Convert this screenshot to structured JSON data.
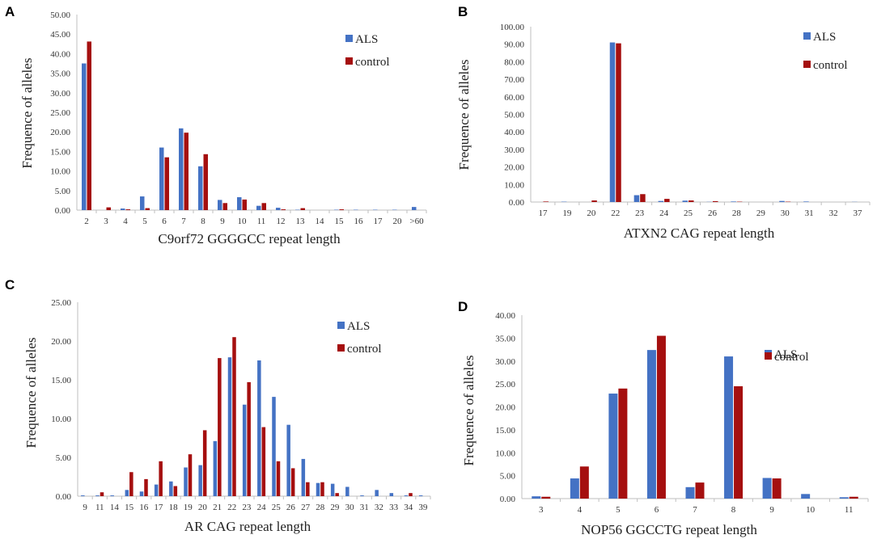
{
  "colors": {
    "ALS": "#4472C4",
    "control": "#A50F0F",
    "axis": "#BFBFBF"
  },
  "chart_data": [
    {
      "panel": "A",
      "type": "bar",
      "xlabel": "C9orf72 GGGGCC repeat length",
      "ylabel": "Frequence of alleles",
      "ylim": [
        0,
        50
      ],
      "yticks": [
        "0.00",
        "5.00",
        "10.00",
        "15.00",
        "20.00",
        "25.00",
        "30.00",
        "35.00",
        "40.00",
        "45.00",
        "50.00"
      ],
      "categories": [
        "2",
        "3",
        "4",
        "5",
        "6",
        "7",
        "8",
        "9",
        "10",
        "11",
        "12",
        "13",
        "14",
        "15",
        "16",
        "17",
        "20",
        ">60"
      ],
      "series": [
        {
          "name": "ALS",
          "values": [
            37.5,
            0.0,
            0.4,
            3.5,
            16.0,
            20.9,
            11.2,
            2.6,
            3.3,
            1.1,
            0.6,
            0.1,
            0.0,
            0.1,
            0.1,
            0.1,
            0.1,
            0.8
          ]
        },
        {
          "name": "control",
          "values": [
            43.1,
            0.7,
            0.2,
            0.5,
            13.5,
            19.8,
            14.3,
            1.8,
            2.7,
            1.8,
            0.2,
            0.5,
            0.0,
            0.2,
            0.0,
            0.0,
            0.0,
            0.0
          ]
        }
      ],
      "legend": [
        "ALS",
        "control"
      ]
    },
    {
      "panel": "B",
      "type": "bar",
      "xlabel": "ATXN2 CAG repeat length",
      "ylabel": "Frequence of alleles",
      "ylim": [
        0,
        100
      ],
      "yticks": [
        "0.00",
        "10.00",
        "20.00",
        "30.00",
        "40.00",
        "50.00",
        "60.00",
        "70.00",
        "80.00",
        "90.00",
        "100.00"
      ],
      "categories": [
        "17",
        "19",
        "20",
        "22",
        "23",
        "24",
        "25",
        "26",
        "28",
        "29",
        "30",
        "31",
        "32",
        "37"
      ],
      "series": [
        {
          "name": "ALS",
          "values": [
            0.0,
            0.2,
            0.0,
            91.0,
            3.9,
            0.6,
            0.8,
            0.1,
            0.3,
            0.0,
            0.6,
            0.3,
            0.0,
            0.1
          ]
        },
        {
          "name": "control",
          "values": [
            0.3,
            0.0,
            0.9,
            90.5,
            4.5,
            1.8,
            0.9,
            0.5,
            0.2,
            0.0,
            0.2,
            0.0,
            0.0,
            0.0
          ]
        }
      ],
      "legend": [
        "ALS",
        "control"
      ]
    },
    {
      "panel": "C",
      "type": "bar",
      "xlabel": "AR CAG repeat length",
      "ylabel": "Frequence of alleles",
      "ylim": [
        0,
        25
      ],
      "yticks": [
        "0.00",
        "5.00",
        "10.00",
        "15.00",
        "20.00",
        "25.00"
      ],
      "categories": [
        "9",
        "11",
        "14",
        "15",
        "16",
        "17",
        "18",
        "19",
        "20",
        "21",
        "22",
        "23",
        "24",
        "25",
        "26",
        "27",
        "28",
        "29",
        "30",
        "31",
        "32",
        "33",
        "34",
        "39"
      ],
      "series": [
        {
          "name": "ALS",
          "values": [
            0.1,
            0.1,
            0.1,
            0.8,
            0.6,
            1.5,
            1.9,
            3.7,
            4.0,
            7.1,
            17.9,
            11.8,
            17.5,
            12.8,
            9.2,
            4.8,
            1.7,
            1.6,
            1.2,
            0.1,
            0.8,
            0.4,
            0.1,
            0.1
          ]
        },
        {
          "name": "control",
          "values": [
            0.0,
            0.5,
            0.0,
            3.1,
            2.2,
            4.5,
            1.3,
            5.4,
            8.5,
            17.8,
            20.5,
            14.7,
            8.9,
            4.5,
            3.6,
            1.8,
            1.8,
            0.4,
            0.0,
            0.0,
            0.0,
            0.0,
            0.4,
            0.0
          ]
        }
      ],
      "legend": [
        "ALS",
        "control"
      ]
    },
    {
      "panel": "D",
      "type": "bar",
      "xlabel": "NOP56 GGCCTG repeat length",
      "ylabel": "Frequence of alleles",
      "ylim": [
        0,
        40
      ],
      "yticks": [
        "0.00",
        "5.00",
        "10.00",
        "15.00",
        "20.00",
        "25.00",
        "30.00",
        "35.00",
        "40.00"
      ],
      "categories": [
        "3",
        "4",
        "5",
        "6",
        "7",
        "8",
        "9",
        "10",
        "11"
      ],
      "series": [
        {
          "name": "ALS",
          "values": [
            0.5,
            4.4,
            22.9,
            32.4,
            2.5,
            31.0,
            4.5,
            1.0,
            0.3
          ]
        },
        {
          "name": "control",
          "values": [
            0.4,
            7.0,
            24.0,
            35.5,
            3.5,
            24.5,
            4.4,
            0.0,
            0.4
          ]
        }
      ],
      "legend": [
        "ALS",
        "control"
      ]
    }
  ]
}
